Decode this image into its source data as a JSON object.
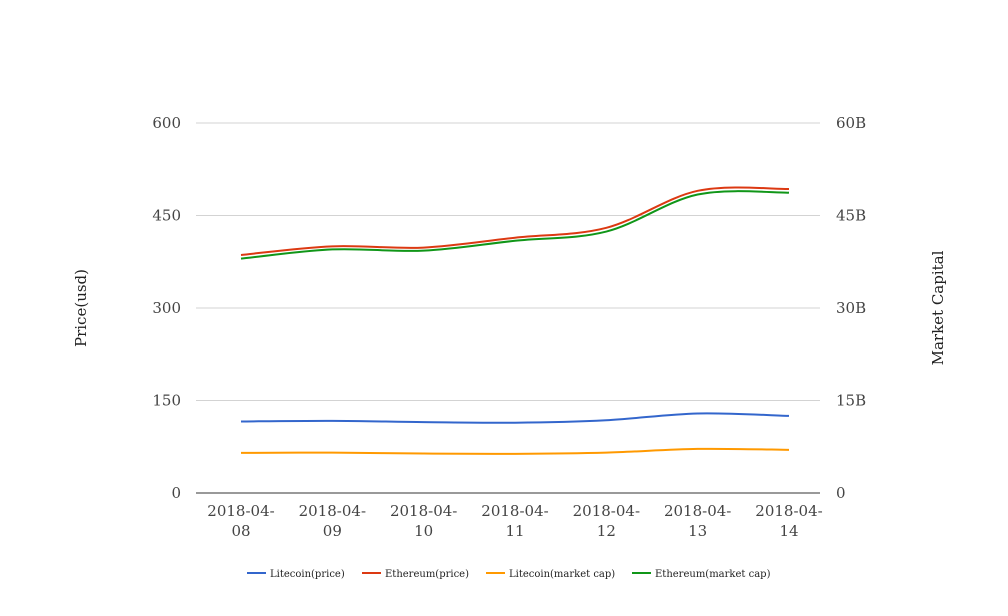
{
  "chart_data": {
    "type": "line",
    "title": "",
    "categories": [
      "2018-04-08",
      "2018-04-09",
      "2018-04-10",
      "2018-04-11",
      "2018-04-12",
      "2018-04-13",
      "2018-04-14"
    ],
    "category_labels": [
      [
        "2018-04-",
        "08"
      ],
      [
        "2018-04-",
        "09"
      ],
      [
        "2018-04-",
        "10"
      ],
      [
        "2018-04-",
        "11"
      ],
      [
        "2018-04-",
        "12"
      ],
      [
        "2018-04-",
        "13"
      ],
      [
        "2018-04-",
        "14"
      ]
    ],
    "y_left": {
      "label": "Price(usd)",
      "ticks": [
        0,
        150,
        300,
        450,
        600
      ],
      "tick_labels": [
        "0",
        "150",
        "300",
        "450",
        "600"
      ],
      "ylim": [
        0,
        600
      ]
    },
    "y_right": {
      "label": "Market Capital",
      "ticks": [
        0,
        15000000000,
        30000000000,
        45000000000,
        60000000000
      ],
      "tick_labels": [
        "0",
        "15B",
        "30B",
        "45B",
        "60B"
      ],
      "ylim": [
        0,
        60000000000
      ]
    },
    "grid": true,
    "legend_position": "bottom",
    "series": [
      {
        "name": "Litecoin(price)",
        "axis": "left",
        "color": "#3366cc",
        "values": [
          116,
          117,
          115,
          114,
          118,
          129,
          125
        ]
      },
      {
        "name": "Ethereum(price)",
        "axis": "right",
        "color": "#dc3912",
        "values": [
          38600000000,
          40000000000,
          39800000000,
          41400000000,
          43000000000,
          49000000000,
          49300000000
        ]
      },
      {
        "name": "Litecoin(market cap)",
        "axis": "right",
        "color": "#ff9900",
        "values": [
          6500000000,
          6550000000,
          6400000000,
          6350000000,
          6550000000,
          7150000000,
          7000000000
        ]
      },
      {
        "name": "Ethereum(market cap)",
        "axis": "right",
        "color": "#109618",
        "values": [
          38000000000,
          39500000000,
          39300000000,
          40900000000,
          42400000000,
          48400000000,
          48700000000
        ]
      }
    ]
  }
}
